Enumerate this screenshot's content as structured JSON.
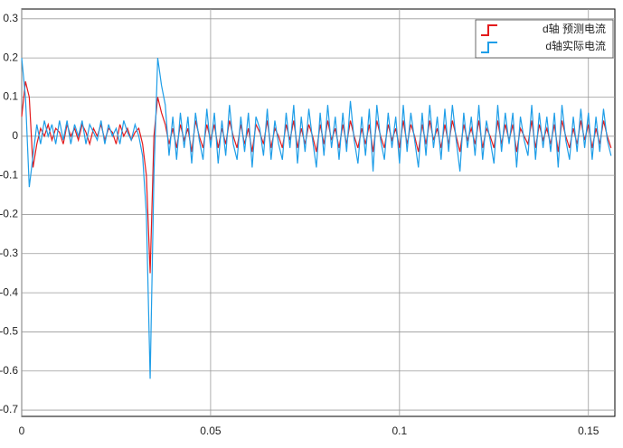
{
  "chart_data": {
    "type": "line",
    "x": [
      0,
      0.001,
      0.002,
      0.003,
      0.004,
      0.005,
      0.006,
      0.007,
      0.008,
      0.009,
      0.01,
      0.011,
      0.012,
      0.013,
      0.014,
      0.015,
      0.016,
      0.017,
      0.018,
      0.019,
      0.02,
      0.021,
      0.022,
      0.023,
      0.024,
      0.025,
      0.026,
      0.027,
      0.028,
      0.029,
      0.03,
      0.031,
      0.032,
      0.033,
      0.034,
      0.035,
      0.036,
      0.037,
      0.038,
      0.039,
      0.04,
      0.041,
      0.042,
      0.043,
      0.044,
      0.045,
      0.046,
      0.047,
      0.048,
      0.049,
      0.05,
      0.051,
      0.052,
      0.053,
      0.054,
      0.055,
      0.056,
      0.057,
      0.058,
      0.059,
      0.06,
      0.061,
      0.062,
      0.063,
      0.064,
      0.065,
      0.066,
      0.067,
      0.068,
      0.069,
      0.07,
      0.071,
      0.072,
      0.073,
      0.074,
      0.075,
      0.076,
      0.077,
      0.078,
      0.079,
      0.08,
      0.081,
      0.082,
      0.083,
      0.084,
      0.085,
      0.086,
      0.087,
      0.088,
      0.089,
      0.09,
      0.091,
      0.092,
      0.093,
      0.094,
      0.095,
      0.096,
      0.097,
      0.098,
      0.099,
      0.1,
      0.101,
      0.102,
      0.103,
      0.104,
      0.105,
      0.106,
      0.107,
      0.108,
      0.109,
      0.11,
      0.111,
      0.112,
      0.113,
      0.114,
      0.115,
      0.116,
      0.117,
      0.118,
      0.119,
      0.12,
      0.121,
      0.122,
      0.123,
      0.124,
      0.125,
      0.126,
      0.127,
      0.128,
      0.129,
      0.13,
      0.131,
      0.132,
      0.133,
      0.134,
      0.135,
      0.136,
      0.137,
      0.138,
      0.139,
      0.14,
      0.141,
      0.142,
      0.143,
      0.144,
      0.145,
      0.146,
      0.147,
      0.148,
      0.149,
      0.15,
      0.151,
      0.152,
      0.153,
      0.154,
      0.155,
      0.156
    ],
    "series": [
      {
        "name": "d轴 预测电流",
        "color": "#e31a1c",
        "values": [
          0.05,
          0.14,
          0.1,
          -0.08,
          -0.02,
          0.02,
          0.0,
          0.03,
          -0.01,
          0.02,
          0.01,
          -0.02,
          0.03,
          0.0,
          0.02,
          -0.01,
          0.03,
          0.01,
          -0.02,
          0.02,
          0.0,
          0.03,
          -0.01,
          0.02,
          0.01,
          -0.02,
          0.03,
          0.0,
          0.02,
          -0.01,
          0.01,
          0.02,
          -0.02,
          -0.1,
          -0.35,
          0.0,
          0.1,
          0.06,
          0.03,
          -0.02,
          0.02,
          -0.03,
          0.03,
          -0.01,
          0.02,
          -0.04,
          0.04,
          0.0,
          -0.03,
          0.03,
          -0.01,
          0.03,
          -0.03,
          0.02,
          -0.02,
          0.04,
          0.0,
          -0.03,
          0.03,
          -0.02,
          0.02,
          -0.04,
          0.03,
          0.01,
          -0.02,
          0.04,
          -0.03,
          0.02,
          0.0,
          -0.03,
          0.03,
          -0.01,
          0.04,
          -0.03,
          0.02,
          -0.02,
          0.03,
          0.0,
          -0.04,
          0.03,
          -0.02,
          0.04,
          -0.01,
          0.02,
          -0.03,
          0.03,
          -0.02,
          0.04,
          0.0,
          -0.03,
          0.02,
          -0.02,
          0.03,
          -0.04,
          0.04,
          0.0,
          -0.03,
          0.03,
          -0.01,
          0.02,
          -0.03,
          0.04,
          -0.02,
          0.03,
          0.0,
          -0.04,
          0.03,
          -0.02,
          0.04,
          -0.01,
          0.02,
          -0.03,
          0.03,
          -0.02,
          0.04,
          0.0,
          -0.04,
          0.03,
          -0.01,
          0.02,
          -0.02,
          0.04,
          -0.03,
          0.02,
          0.0,
          -0.03,
          0.04,
          -0.02,
          0.03,
          -0.01,
          0.03,
          -0.04,
          0.02,
          0.0,
          -0.02,
          0.04,
          -0.03,
          0.03,
          -0.01,
          0.02,
          -0.02,
          0.03,
          -0.04,
          0.04,
          0.0,
          -0.03,
          0.02,
          -0.02,
          0.04,
          -0.01,
          0.03,
          -0.03,
          0.02,
          -0.02,
          0.04,
          0.0,
          -0.03
        ]
      },
      {
        "name": "d轴实际电流",
        "color": "#1f9ee8",
        "values": [
          0.2,
          0.1,
          -0.13,
          -0.05,
          0.03,
          -0.02,
          0.04,
          0.0,
          0.03,
          -0.02,
          0.04,
          -0.01,
          0.04,
          -0.02,
          0.03,
          0.0,
          0.04,
          -0.02,
          0.03,
          0.01,
          -0.01,
          0.04,
          -0.02,
          0.03,
          0.0,
          0.02,
          -0.02,
          0.04,
          0.01,
          -0.01,
          0.03,
          0.0,
          -0.05,
          -0.2,
          -0.62,
          -0.1,
          0.2,
          0.13,
          0.08,
          -0.05,
          0.05,
          -0.06,
          0.06,
          -0.03,
          0.05,
          -0.07,
          0.06,
          -0.01,
          -0.06,
          0.07,
          -0.03,
          0.06,
          -0.07,
          0.04,
          -0.05,
          0.08,
          -0.02,
          -0.06,
          0.05,
          -0.04,
          0.06,
          -0.08,
          0.05,
          0.02,
          -0.05,
          0.07,
          -0.06,
          0.04,
          -0.02,
          -0.06,
          0.06,
          -0.03,
          0.08,
          -0.07,
          0.05,
          -0.04,
          0.07,
          -0.01,
          -0.08,
          0.06,
          -0.05,
          0.08,
          -0.03,
          0.05,
          -0.06,
          0.06,
          -0.04,
          0.09,
          -0.01,
          -0.07,
          0.05,
          -0.05,
          0.07,
          -0.09,
          0.08,
          -0.01,
          -0.06,
          0.06,
          -0.03,
          0.05,
          -0.07,
          0.08,
          -0.04,
          0.06,
          -0.01,
          -0.08,
          0.06,
          -0.05,
          0.08,
          -0.03,
          0.05,
          -0.06,
          0.07,
          -0.04,
          0.08,
          -0.01,
          -0.09,
          0.06,
          -0.03,
          0.05,
          -0.05,
          0.08,
          -0.06,
          0.04,
          -0.01,
          -0.07,
          0.08,
          -0.04,
          0.06,
          -0.02,
          0.06,
          -0.08,
          0.05,
          -0.01,
          -0.05,
          0.08,
          -0.06,
          0.06,
          -0.03,
          0.05,
          -0.04,
          0.06,
          -0.08,
          0.08,
          -0.01,
          -0.06,
          0.05,
          -0.04,
          0.07,
          -0.03,
          0.06,
          -0.06,
          0.05,
          -0.04,
          0.07,
          -0.01,
          -0.05
        ]
      }
    ],
    "xlim": [
      0,
      0.157
    ],
    "ylim": [
      -0.716,
      0.325
    ],
    "xticks": [
      0,
      0.05,
      0.1,
      0.15
    ],
    "yticks": [
      -0.7,
      -0.6,
      -0.5,
      -0.4,
      -0.3,
      -0.2,
      -0.1,
      0,
      0.1,
      0.2,
      0.3
    ],
    "grid": true,
    "legend": "top-right"
  }
}
